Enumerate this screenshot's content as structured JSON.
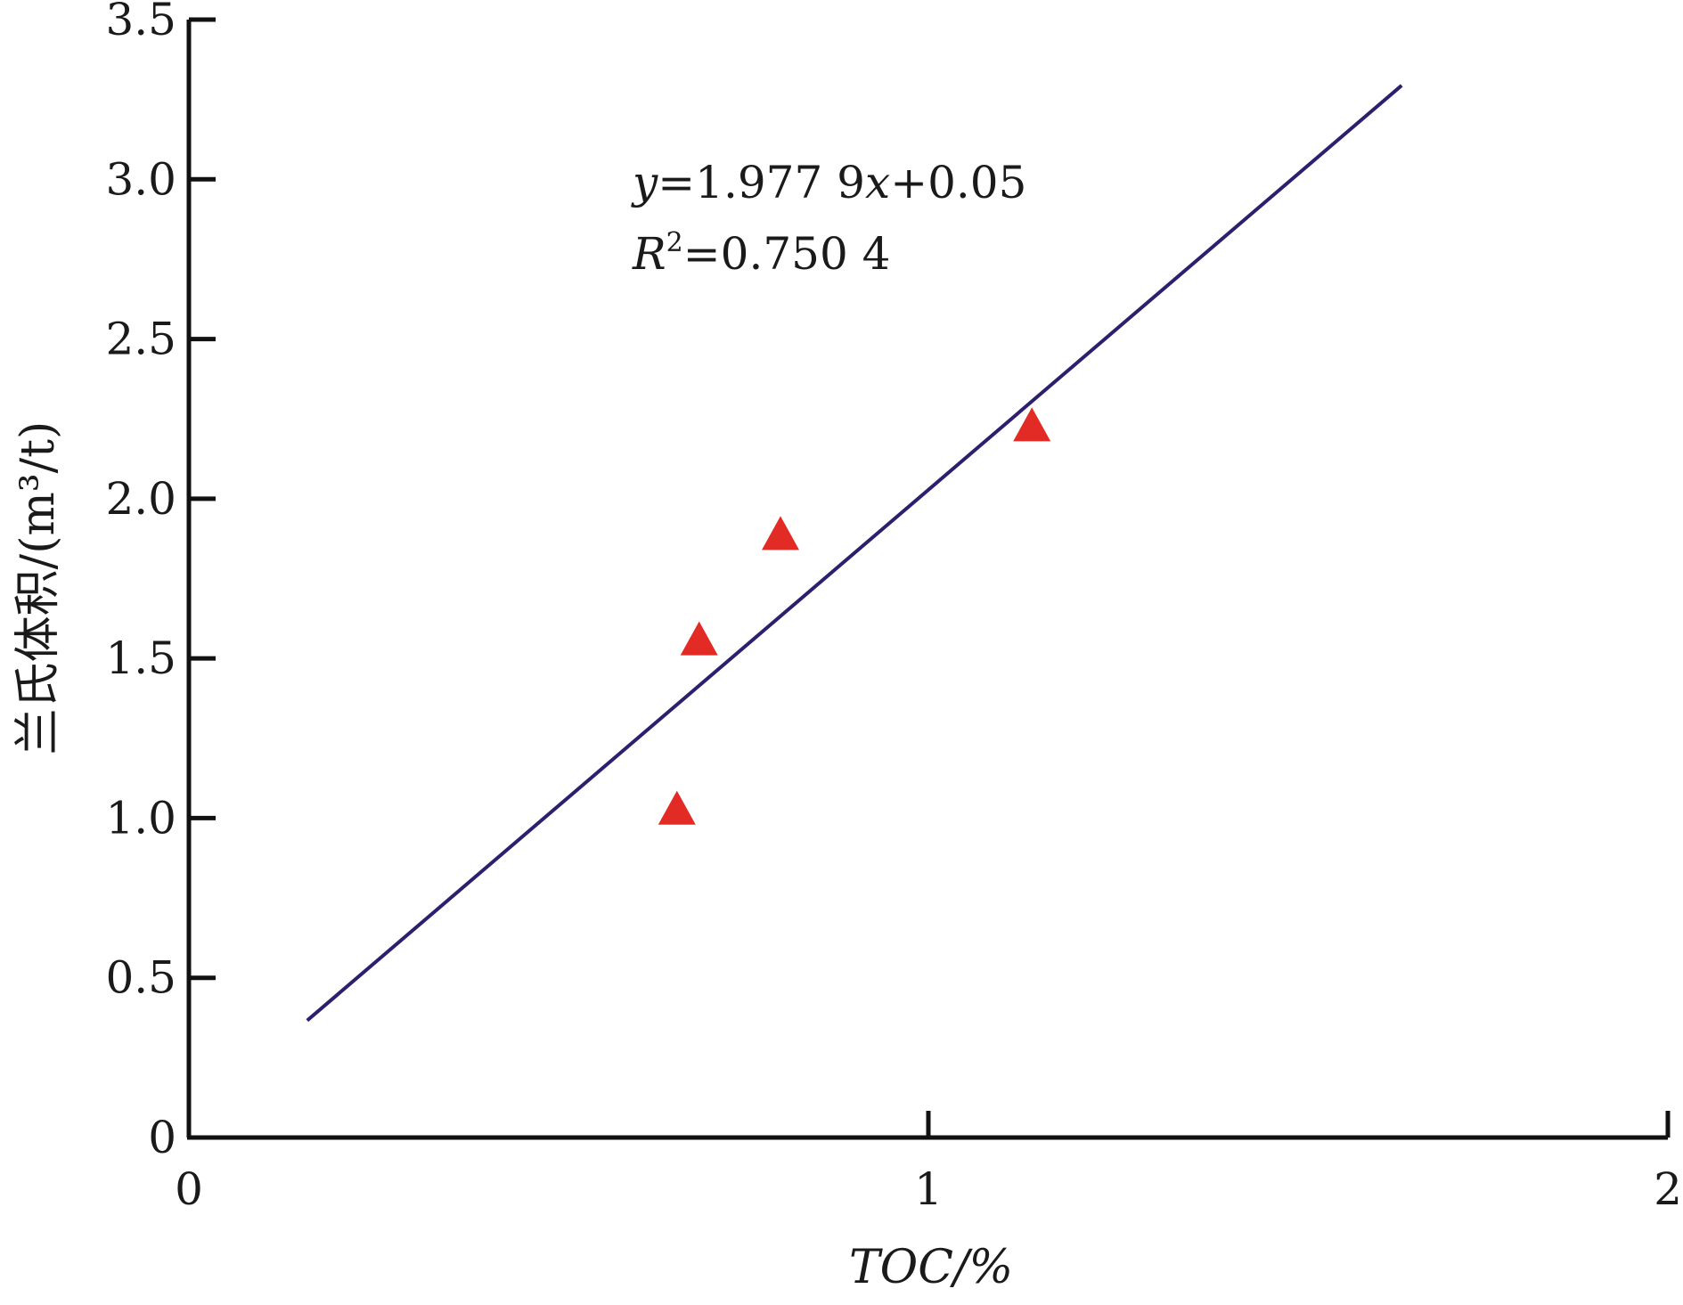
{
  "chart_data": {
    "type": "scatter",
    "title": "",
    "xlabel": "TOC/%",
    "ylabel": "兰氏体积/(m³/t)",
    "xlim": [
      0,
      2
    ],
    "ylim": [
      0,
      3.5
    ],
    "x_ticks": [
      0,
      1,
      2
    ],
    "x_tick_labels": [
      "0",
      "1",
      "2"
    ],
    "y_ticks": [
      0,
      0.5,
      1.0,
      1.5,
      2.0,
      2.5,
      3.0,
      3.5
    ],
    "y_tick_labels": [
      "0",
      "0.5",
      "1.0",
      "1.5",
      "2.0",
      "2.5",
      "3.0",
      "3.5"
    ],
    "grid": false,
    "legend": "none",
    "series": [
      {
        "marker": "triangle",
        "color": "#e32b25",
        "points": [
          {
            "x": 0.66,
            "y": 1.02
          },
          {
            "x": 0.69,
            "y": 1.55
          },
          {
            "x": 0.8,
            "y": 1.88
          },
          {
            "x": 1.14,
            "y": 2.22
          }
        ]
      }
    ],
    "trendline": {
      "color": "#2e1f6e",
      "slope": 1.9779,
      "intercept": 0.05,
      "x_range": [
        0.16,
        1.64
      ]
    },
    "annotations": {
      "equation": {
        "y_var": "y",
        "equals_text": "=1.977 9",
        "x_var": "x",
        "tail": "+0.05"
      },
      "r2": {
        "r_var": "R",
        "sup": "2",
        "value": "=0.750 4"
      }
    }
  }
}
